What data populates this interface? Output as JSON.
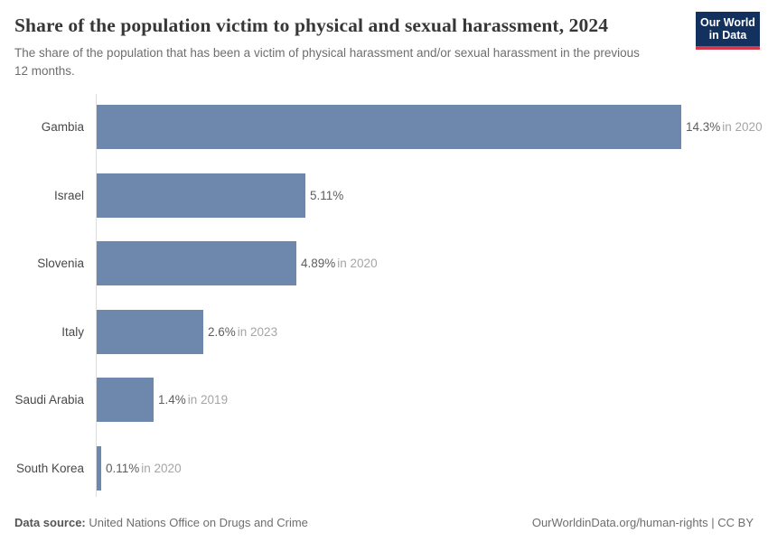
{
  "header": {
    "title": "Share of the population victim to physical and sexual harassment, 2024",
    "subtitle": "The share of the population that has been a victim of physical harassment and/or sexual harassment in the previous 12 months.",
    "logo": {
      "line1": "Our World",
      "line2": "in Data"
    }
  },
  "chart_data": {
    "type": "bar",
    "orientation": "horizontal",
    "title": "Share of the population victim to physical and sexual harassment, 2024",
    "categories": [
      "Gambia",
      "Israel",
      "Slovenia",
      "Italy",
      "Saudi Arabia",
      "South Korea"
    ],
    "values": [
      14.3,
      5.11,
      4.89,
      2.6,
      1.4,
      0.11
    ],
    "value_labels": [
      "14.3%",
      "5.11%",
      "4.89%",
      "2.6%",
      "1.4%",
      "0.11%"
    ],
    "year_notes": [
      "in 2020",
      "",
      "in 2020",
      "in 2023",
      "in 2019",
      "in 2020"
    ],
    "xlim": [
      0,
      14.3
    ],
    "grid": false,
    "legend": "none",
    "bar_color": "#6e87ad"
  },
  "footer": {
    "datasource_label": "Data source:",
    "datasource_value": "United Nations Office on Drugs and Crime",
    "attribution": "OurWorldinData.org/human-rights | CC BY"
  },
  "colors": {
    "bar": "#6e87ad",
    "axis_line": "#dedede",
    "title_text": "#373737",
    "subtitle_text": "#6e6e6e",
    "value_text": "#5e5e5e",
    "year_text": "#a5a5a5",
    "logo_background": "#12315f",
    "logo_stripe": "#d23a4b"
  }
}
